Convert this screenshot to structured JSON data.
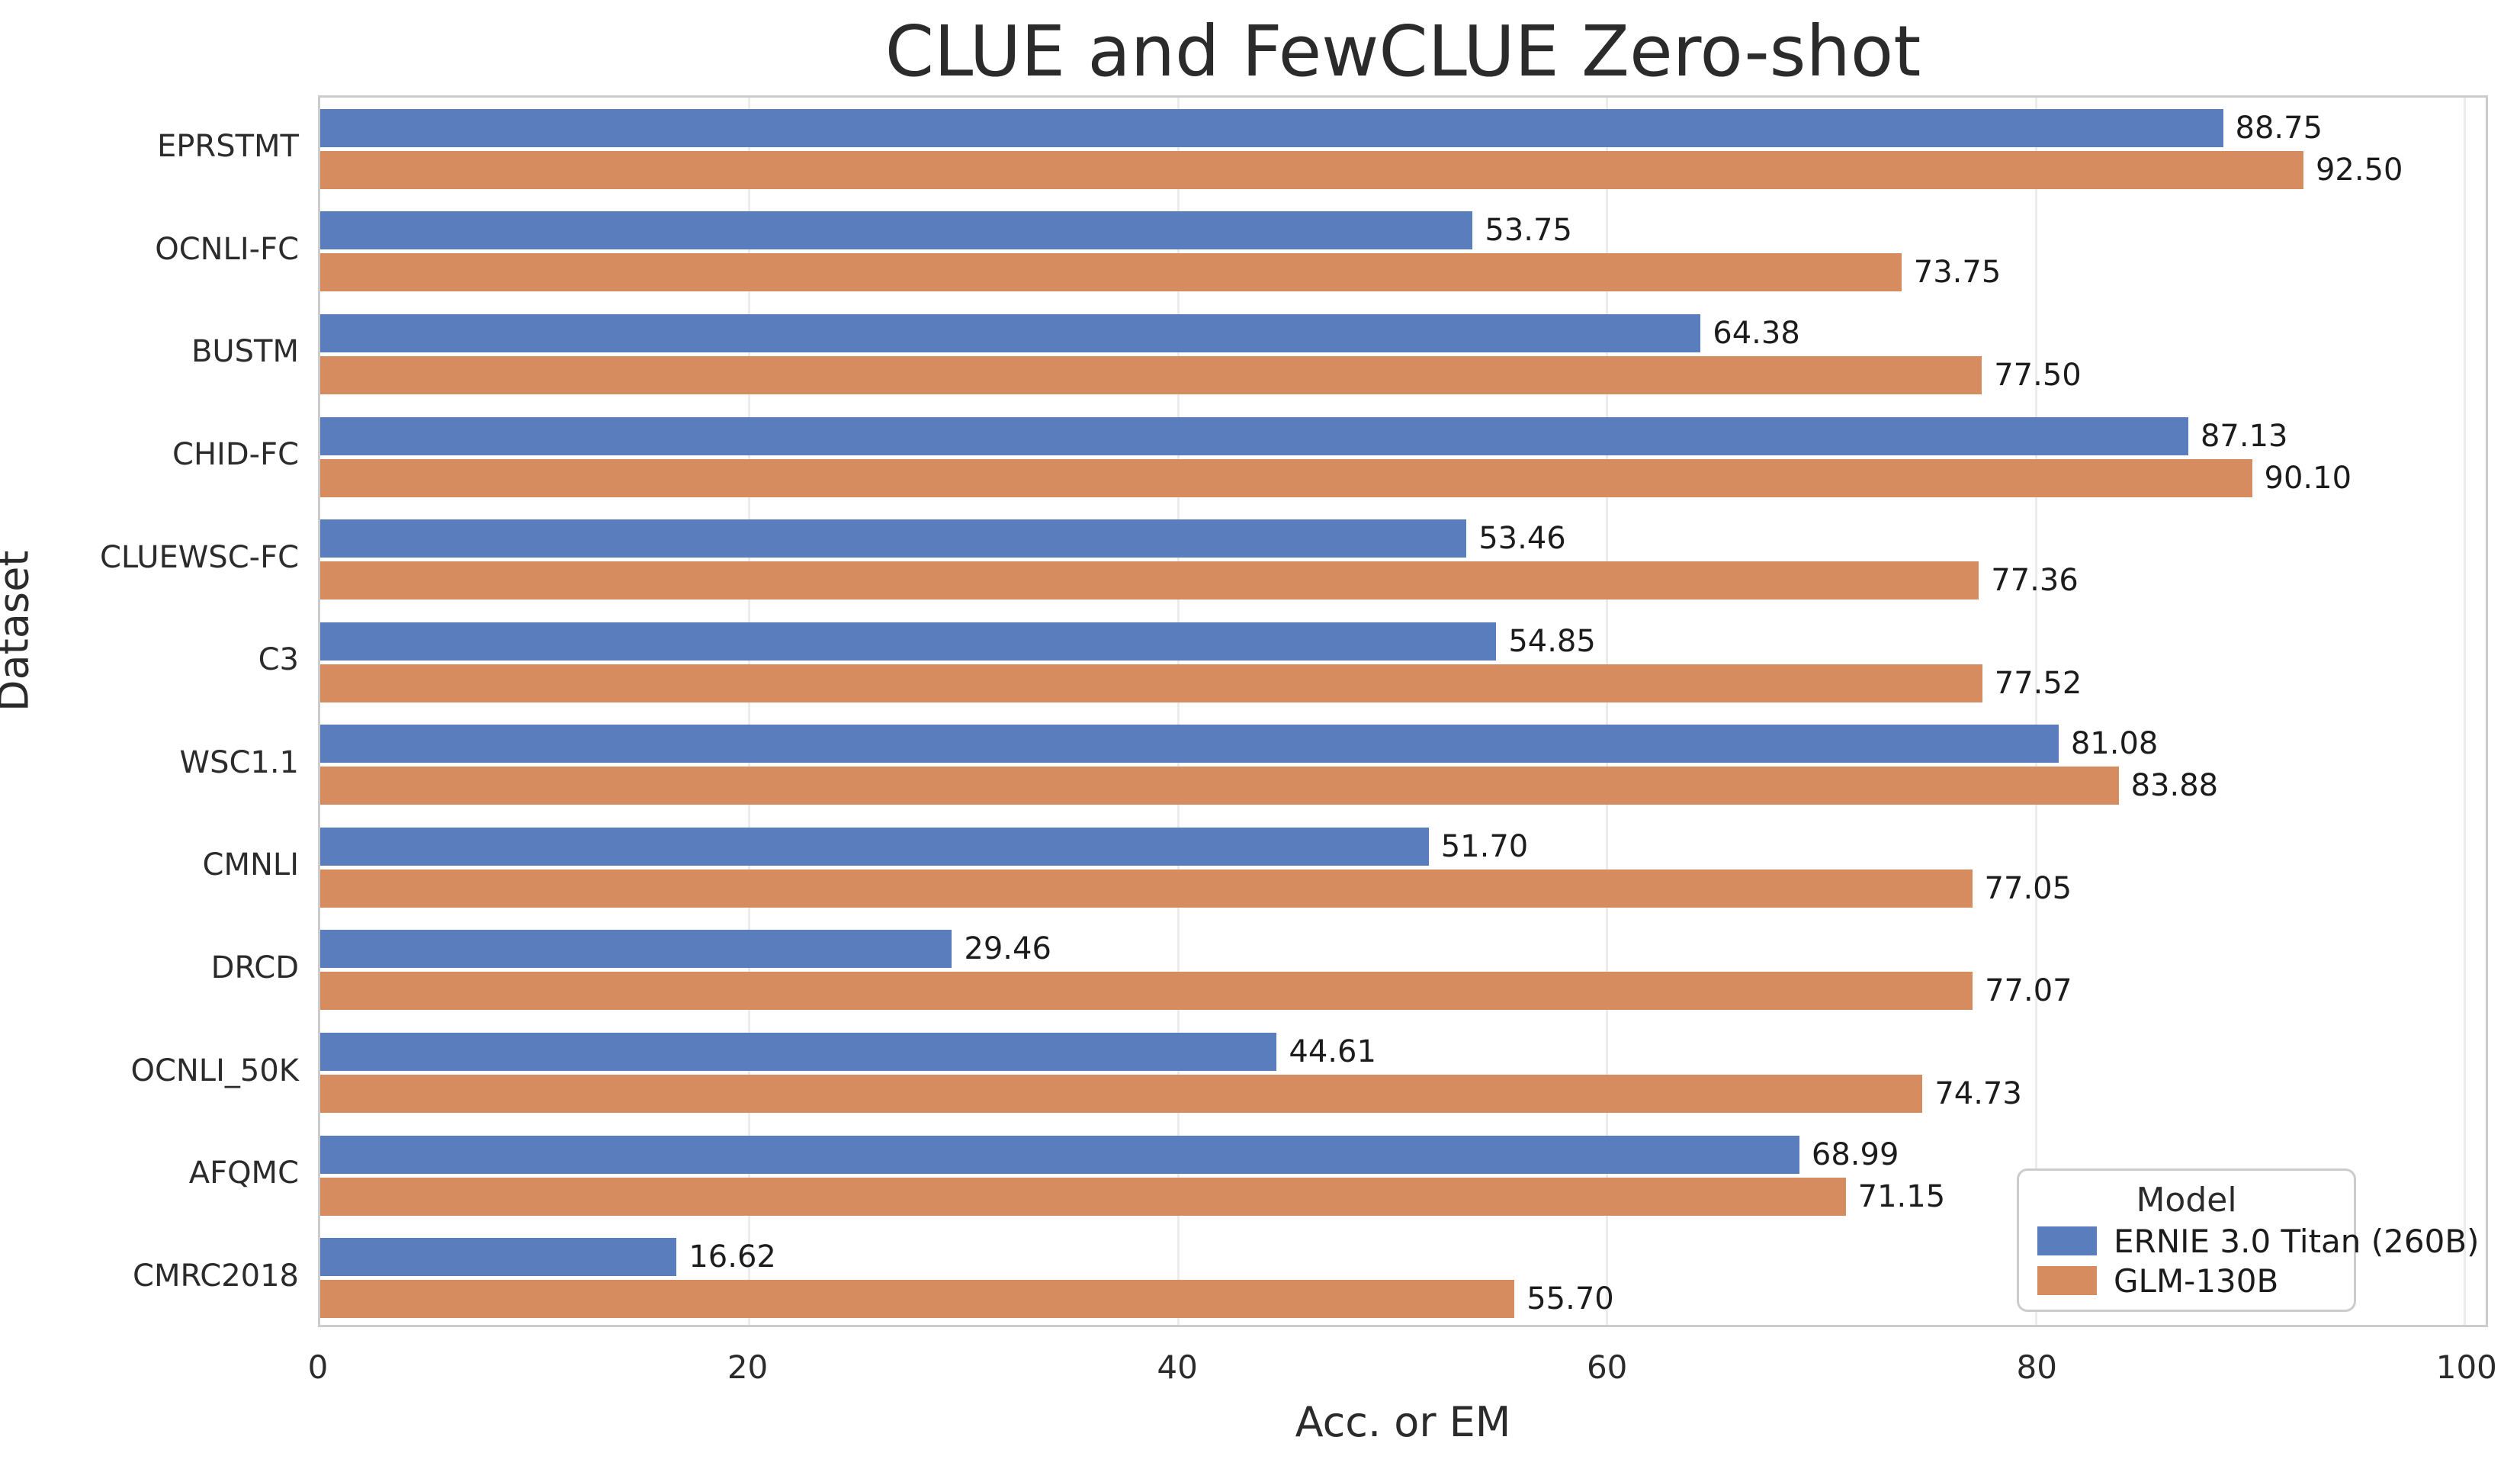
{
  "chart_data": {
    "type": "bar",
    "orientation": "horizontal",
    "title": "CLUE and FewCLUE Zero-shot",
    "xlabel": "Acc. or EM",
    "ylabel": "Dataset",
    "xlim": [
      0,
      101
    ],
    "xticks": [
      0,
      20,
      40,
      60,
      80,
      100
    ],
    "grid": true,
    "categories": [
      "EPRSTMT",
      "OCNLI-FC",
      "BUSTM",
      "CHID-FC",
      "CLUEWSC-FC",
      "C3",
      "WSC1.1",
      "CMNLI",
      "DRCD",
      "OCNLI_50K",
      "AFQMC",
      "CMRC2018"
    ],
    "series": [
      {
        "name": "ERNIE 3.0 Titan (260B)",
        "color": "#5a7dbe",
        "values": [
          88.75,
          53.75,
          64.38,
          87.13,
          53.46,
          54.85,
          81.08,
          51.7,
          29.46,
          44.61,
          68.99,
          16.62
        ]
      },
      {
        "name": "GLM-130B",
        "color": "#d68c5f",
        "values": [
          92.5,
          73.75,
          77.5,
          90.1,
          77.36,
          77.52,
          83.88,
          77.05,
          77.07,
          74.73,
          71.15,
          55.7
        ]
      }
    ],
    "bar_value_labels": [
      [
        "88.75",
        "53.75",
        "64.38",
        "87.13",
        "53.46",
        "54.85",
        "81.08",
        "51.70",
        "29.46",
        "44.61",
        "68.99",
        "16.62"
      ],
      [
        "92.50",
        "73.75",
        "77.50",
        "90.10",
        "77.36",
        "77.52",
        "83.88",
        "77.05",
        "77.07",
        "74.73",
        "71.15",
        "55.70"
      ]
    ],
    "legend": {
      "title": "Model",
      "position": "lower right"
    }
  }
}
